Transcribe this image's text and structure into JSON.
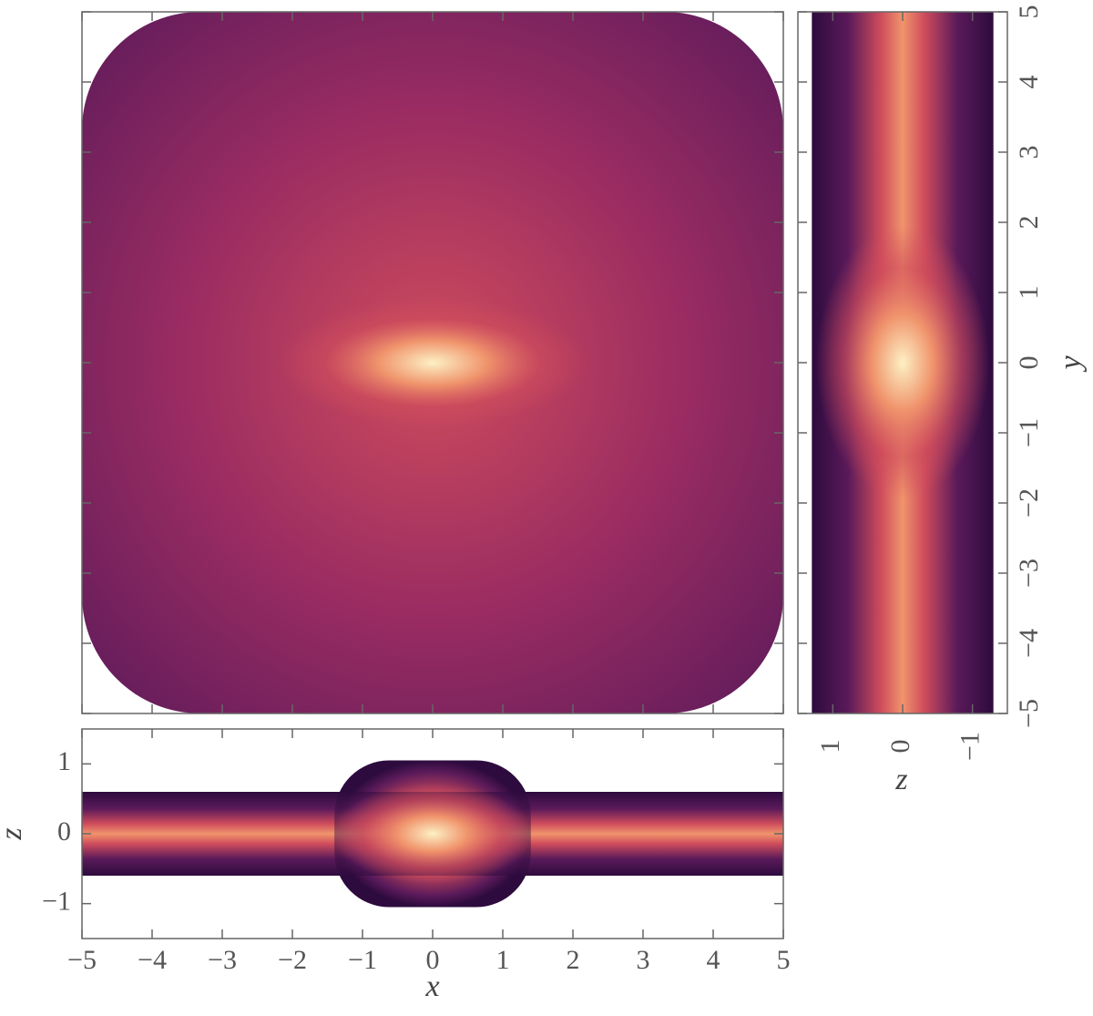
{
  "chart_data": [
    {
      "type": "hexbin",
      "xlim": [
        -5,
        5
      ],
      "ylim": [
        -5,
        5
      ],
      "xticks": [
        {
          "value": -5,
          "label": "−5"
        },
        {
          "value": -4,
          "label": "−4"
        },
        {
          "value": -3,
          "label": "−3"
        },
        {
          "value": -2,
          "label": "−2"
        },
        {
          "value": -1,
          "label": "−1"
        },
        0,
        1,
        2,
        3,
        4,
        5
      ],
      "yticks": [
        {
          "value": -5,
          "label": "−5"
        },
        {
          "value": -4,
          "label": "−4"
        },
        {
          "value": -3,
          "label": "−3"
        },
        {
          "value": -2,
          "label": "−2"
        },
        {
          "value": -1,
          "label": "−1"
        },
        0,
        1,
        2,
        3,
        4,
        5
      ],
      "tick_labels": false,
      "colors": [
        "#2d0b3e",
        "#5a1a5a",
        "#9a2c62",
        "#cf4c5c",
        "#f0946c",
        "#fdf0c4"
      ]
    },
    {
      "type": "hexbin",
      "xlabel": "z",
      "ylabel": "y",
      "xlim": [
        1.5,
        -1.5
      ],
      "ylim": [
        -5,
        5
      ],
      "xticks": [
        {
          "value": -1,
          "label": "−1"
        },
        0,
        1
      ],
      "yticks": [
        {
          "value": -5,
          "label": "−5"
        },
        {
          "value": -4,
          "label": "−4"
        },
        {
          "value": -3,
          "label": "−3"
        },
        {
          "value": -2,
          "label": "−2"
        },
        {
          "value": -1,
          "label": "−1"
        },
        0,
        1,
        2,
        3,
        4,
        5
      ],
      "tick_labels": true,
      "ytick_side": "right",
      "colors": [
        "#2d0b3e",
        "#5a1a5a",
        "#9a2c62",
        "#cf4c5c",
        "#f0946c",
        "#fdf0c4"
      ]
    },
    {
      "type": "hexbin",
      "xlabel": "x",
      "ylabel": "z",
      "xlim": [
        -5,
        5
      ],
      "ylim": [
        -1.5,
        1.5
      ],
      "xticks": [
        {
          "value": -5,
          "label": "−5"
        },
        {
          "value": -4,
          "label": "−4"
        },
        {
          "value": -3,
          "label": "−3"
        },
        {
          "value": -2,
          "label": "−2"
        },
        {
          "value": -1,
          "label": "−1"
        },
        0,
        1,
        2,
        3,
        4,
        5
      ],
      "yticks": [
        {
          "value": -1,
          "label": "−1"
        },
        0,
        1
      ],
      "tick_labels": true,
      "ytick_side": "left",
      "colors": [
        "#2d0b3e",
        "#5a1a5a",
        "#9a2c62",
        "#cf4c5c",
        "#f0946c",
        "#fdf0c4"
      ]
    }
  ]
}
